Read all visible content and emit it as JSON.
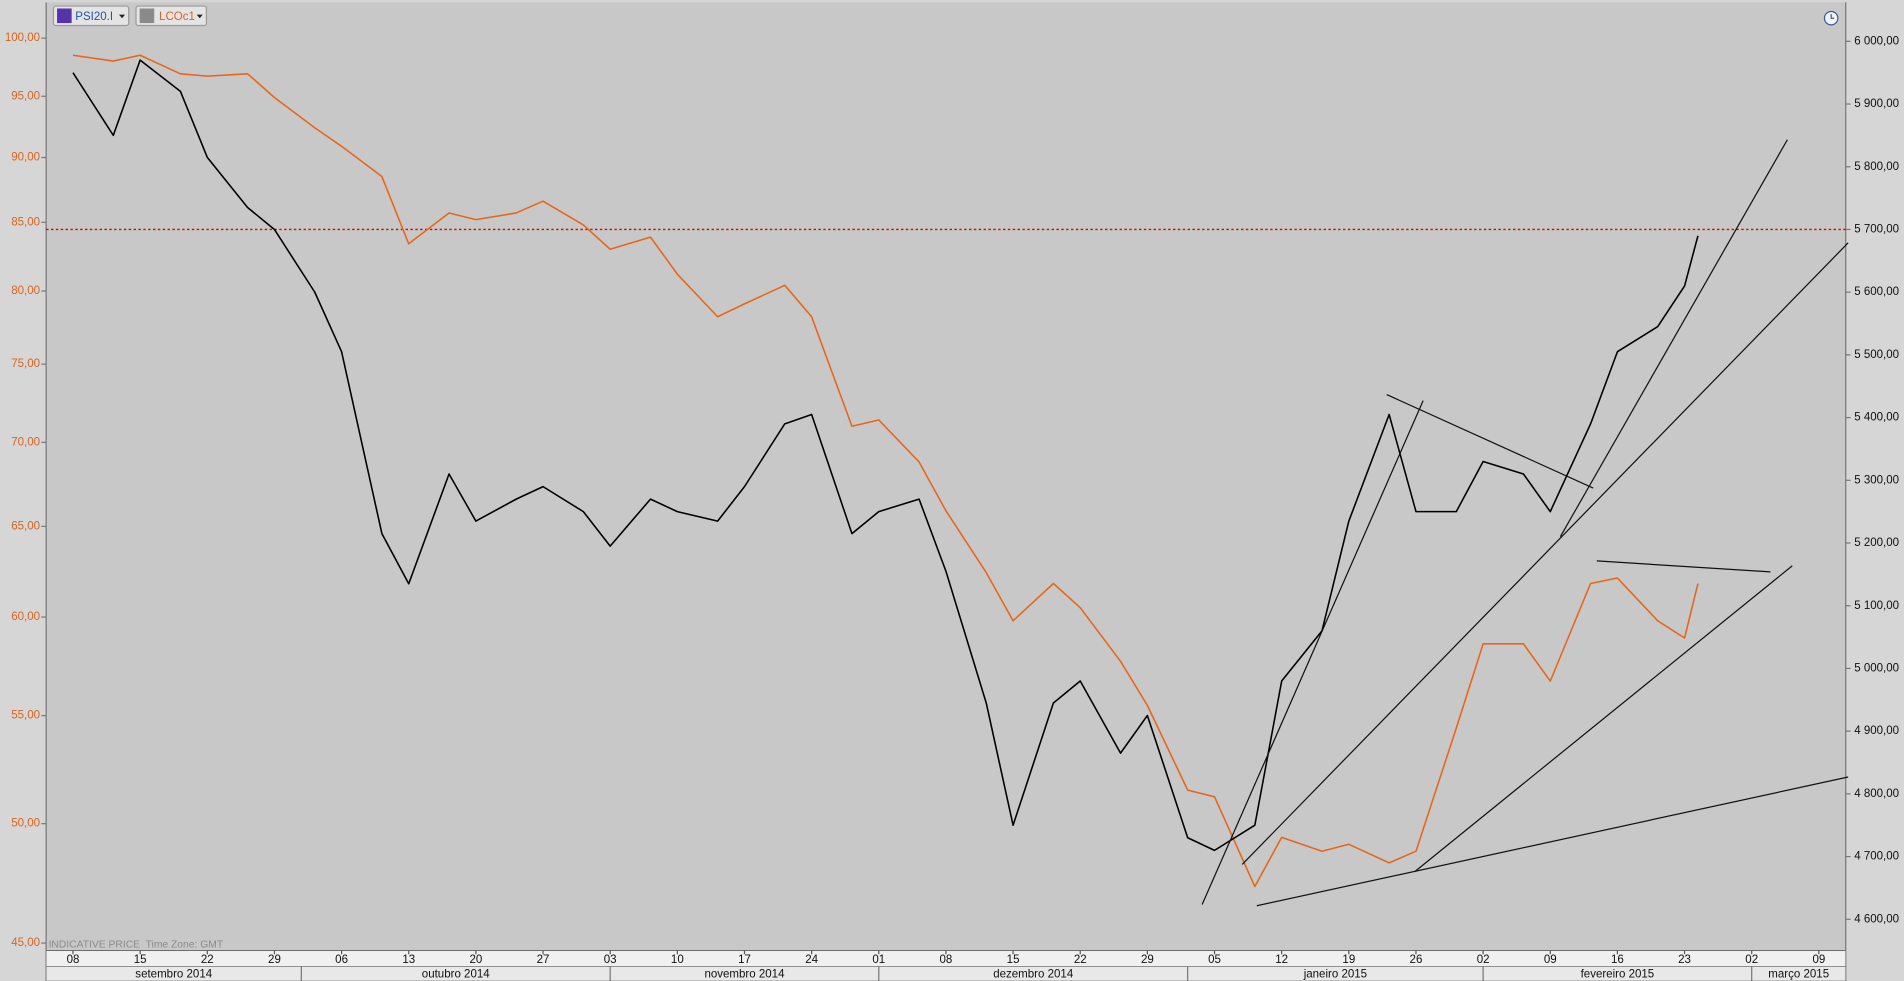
{
  "chart_data": {
    "type": "line",
    "footnote": "INDICATIVE PRICE  Time Zone: GMT",
    "x": [
      "2014-09-08",
      "2014-09-11",
      "2014-09-15",
      "2014-09-18",
      "2014-09-22",
      "2014-09-25",
      "2014-09-29",
      "2014-10-02",
      "2014-10-06",
      "2014-10-09",
      "2014-10-13",
      "2014-10-16",
      "2014-10-20",
      "2014-10-23",
      "2014-10-27",
      "2014-10-30",
      "2014-11-03",
      "2014-11-06",
      "2014-11-10",
      "2014-11-13",
      "2014-11-17",
      "2014-11-20",
      "2014-11-24",
      "2014-11-27",
      "2014-12-01",
      "2014-12-04",
      "2014-12-08",
      "2014-12-11",
      "2014-12-15",
      "2014-12-18",
      "2014-12-22",
      "2014-12-25",
      "2014-12-29",
      "2015-01-01",
      "2015-01-05",
      "2015-01-08",
      "2015-01-12",
      "2015-01-15",
      "2015-01-19",
      "2015-01-22",
      "2015-01-26",
      "2015-01-29",
      "2015-02-02",
      "2015-02-05",
      "2015-02-09",
      "2015-02-12",
      "2015-02-16",
      "2015-02-19",
      "2015-02-23",
      "2015-02-24"
    ],
    "xlim": [
      "2014-09-04",
      "2015-03-11"
    ],
    "xticks": [
      {
        "value": "2014-09-08",
        "label": "08"
      },
      {
        "value": "2014-09-15",
        "label": "15"
      },
      {
        "value": "2014-09-22",
        "label": "22"
      },
      {
        "value": "2014-09-29",
        "label": "29"
      },
      {
        "value": "2014-10-06",
        "label": "06"
      },
      {
        "value": "2014-10-13",
        "label": "13"
      },
      {
        "value": "2014-10-20",
        "label": "20"
      },
      {
        "value": "2014-10-27",
        "label": "27"
      },
      {
        "value": "2014-11-03",
        "label": "03"
      },
      {
        "value": "2014-11-10",
        "label": "10"
      },
      {
        "value": "2014-11-17",
        "label": "17"
      },
      {
        "value": "2014-11-24",
        "label": "24"
      },
      {
        "value": "2014-12-01",
        "label": "01"
      },
      {
        "value": "2014-12-08",
        "label": "08"
      },
      {
        "value": "2014-12-15",
        "label": "15"
      },
      {
        "value": "2014-12-22",
        "label": "22"
      },
      {
        "value": "2014-12-29",
        "label": "29"
      },
      {
        "value": "2015-01-05",
        "label": "05"
      },
      {
        "value": "2015-01-12",
        "label": "12"
      },
      {
        "value": "2015-01-19",
        "label": "19"
      },
      {
        "value": "2015-01-26",
        "label": "26"
      },
      {
        "value": "2015-02-02",
        "label": "02"
      },
      {
        "value": "2015-02-09",
        "label": "09"
      },
      {
        "value": "2015-02-16",
        "label": "16"
      },
      {
        "value": "2015-02-23",
        "label": "23"
      },
      {
        "value": "2015-03-02",
        "label": "02"
      },
      {
        "value": "2015-03-09",
        "label": "09"
      }
    ],
    "xticks_months": [
      {
        "value": "2014-09-01",
        "label": "setembro 2014"
      },
      {
        "value": "2014-10-01",
        "label": "outubro 2014"
      },
      {
        "value": "2014-11-01",
        "label": "novembro 2014"
      },
      {
        "value": "2014-12-01",
        "label": "dezembro 2014"
      },
      {
        "value": "2015-01-01",
        "label": "janeiro 2015"
      },
      {
        "value": "2015-02-01",
        "label": "fevereiro 2015"
      },
      {
        "value": "2015-03-01",
        "label": "março 2015"
      }
    ],
    "ylim": [
      44.7,
      103.2
    ],
    "yscale": "log",
    "yticks": [
      {
        "value": 100,
        "label": "100,00"
      },
      {
        "value": 95,
        "label": "95,00"
      },
      {
        "value": 90,
        "label": "90,00"
      },
      {
        "value": 85,
        "label": "85,00"
      },
      {
        "value": 80,
        "label": "80,00"
      },
      {
        "value": 75,
        "label": "75,00"
      },
      {
        "value": 70,
        "label": "70,00"
      },
      {
        "value": 65,
        "label": "65,00"
      },
      {
        "value": 60,
        "label": "60,00"
      },
      {
        "value": 55,
        "label": "55,00"
      },
      {
        "value": 50,
        "label": "50,00"
      },
      {
        "value": 45,
        "label": "45,00"
      }
    ],
    "y2lim": [
      4550,
      6062
    ],
    "y2ticks": [
      {
        "value": 6000,
        "label": "6 000,00"
      },
      {
        "value": 5900,
        "label": "5 900,00"
      },
      {
        "value": 5800,
        "label": "5 800,00"
      },
      {
        "value": 5700,
        "label": "5 700,00"
      },
      {
        "value": 5600,
        "label": "5 600,00"
      },
      {
        "value": 5500,
        "label": "5 500,00"
      },
      {
        "value": 5400,
        "label": "5 400,00"
      },
      {
        "value": 5300,
        "label": "5 300,00"
      },
      {
        "value": 5200,
        "label": "5 200,00"
      },
      {
        "value": 5100,
        "label": "5 100,00"
      },
      {
        "value": 5000,
        "label": "5 000,00"
      },
      {
        "value": 4900,
        "label": "4 900,00"
      },
      {
        "value": 4800,
        "label": "4 800,00"
      },
      {
        "value": 4700,
        "label": "4 700,00"
      },
      {
        "value": 4600,
        "label": "4 600,00"
      }
    ],
    "series": [
      {
        "name": "PSI20.I",
        "color": "#000000",
        "axis": "y2",
        "values": [
          5950,
          5850,
          5970,
          5920,
          5815,
          5735,
          5700,
          5600,
          5505,
          5215,
          5135,
          5310,
          5235,
          5270,
          5290,
          5250,
          5195,
          5270,
          5250,
          5235,
          5290,
          5390,
          5405,
          5215,
          5250,
          5270,
          5155,
          4945,
          4750,
          4945,
          4980,
          4865,
          4925,
          4730,
          4710,
          4750,
          4980,
          5060,
          5235,
          5405,
          5250,
          5250,
          5330,
          5310,
          5250,
          5390,
          5505,
          5545,
          5610,
          5690
        ]
      },
      {
        "name": "LCOc1",
        "color": "#e8661a",
        "values": [
          98.5,
          98.0,
          98.5,
          96.9,
          96.7,
          96.9,
          94.9,
          92.4,
          90.9,
          88.5,
          83.4,
          85.7,
          85.2,
          85.7,
          86.6,
          84.8,
          83.0,
          83.9,
          81.2,
          78.2,
          79.1,
          80.4,
          78.2,
          71.0,
          71.4,
          68.8,
          65.9,
          62.4,
          59.8,
          61.8,
          60.5,
          57.7,
          55.5,
          51.5,
          51.2,
          47.3,
          49.4,
          48.8,
          49.1,
          48.3,
          48.8,
          54.4,
          58.6,
          58.6,
          56.7,
          61.8,
          62.1,
          59.8,
          58.9,
          61.8
        ]
      }
    ],
    "ref_line": {
      "value": 5700,
      "axis": "y2",
      "color": "#e00000"
    }
  }
}
